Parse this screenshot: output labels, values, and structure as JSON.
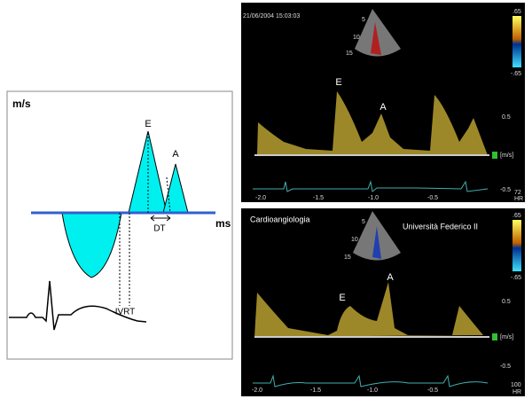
{
  "diagram": {
    "y_label": "m/s",
    "x_label": "ms",
    "peaks": [
      "E",
      "A"
    ],
    "deceleration": "DT",
    "relaxation": "IVRT"
  },
  "echo_panels": [
    {
      "timestamp": "21/06/2004 15:03:03",
      "waves": [
        "E",
        "A"
      ],
      "depth_marks": [
        "5",
        "10",
        "15"
      ],
      "scale_top": ".65",
      "scale_bottom": "-.65",
      "velocity_ticks": [
        "0.5",
        "[m/s]",
        "-0.5"
      ],
      "time_ticks": [
        "-2.0",
        "-1.5",
        "-1.0",
        "-0.5"
      ],
      "heart_rate": "72",
      "hr_label": "HR"
    },
    {
      "left_caption": "Cardioangiologia",
      "right_caption": "Università Federico II",
      "waves": [
        "E",
        "A"
      ],
      "depth_marks": [
        "5",
        "10",
        "15"
      ],
      "scale_top": ".65",
      "scale_bottom": "-.65",
      "velocity_ticks": [
        "0.5",
        "[m/s]",
        "-0.5"
      ],
      "time_ticks": [
        "-2.0",
        "-1.5",
        "-1.0",
        "-0.5"
      ],
      "heart_rate": "100",
      "hr_label": "HR"
    }
  ]
}
